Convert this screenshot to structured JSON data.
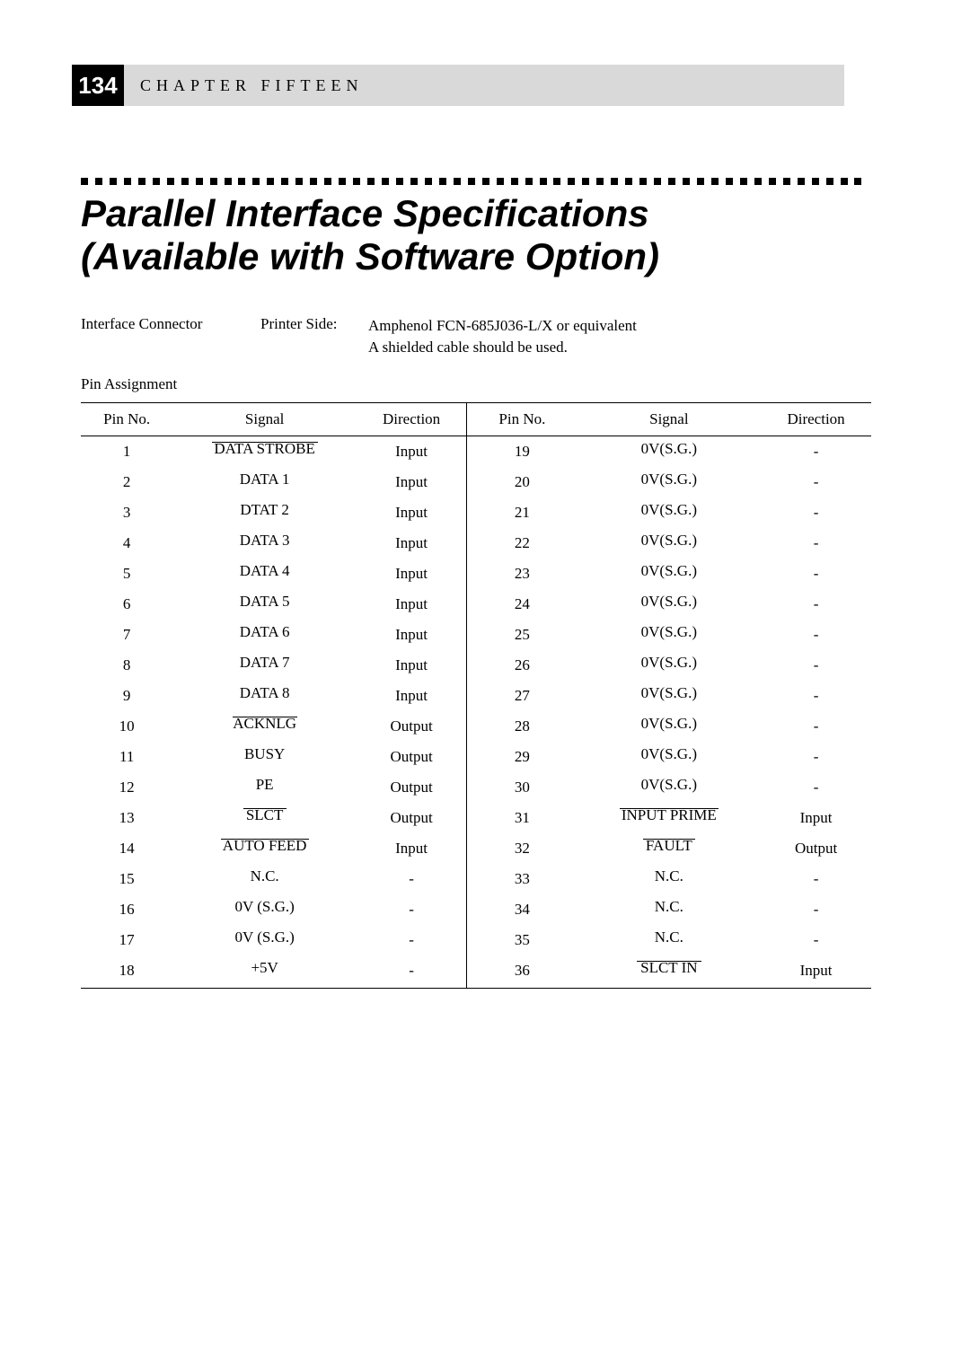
{
  "page_number": "134",
  "chapter_label": "CHAPTER FIFTEEN",
  "title_line1": "Parallel Interface Specifications",
  "title_line2": "(Available with Software Option)",
  "connector_label": "Interface Connector",
  "connector_mid": "Printer Side:",
  "connector_val_l1": "Amphenol FCN-685J036-L/X or equivalent",
  "connector_val_l2": "A shielded cable should be used.",
  "assignment_label": "Pin Assignment",
  "headers": {
    "pin": "Pin No.",
    "signal": "Signal",
    "direction": "Direction"
  },
  "left": [
    {
      "pin": "1",
      "signal": "DATA STROBE",
      "dir": "Input",
      "over": 118
    },
    {
      "pin": "2",
      "signal": "DATA 1",
      "dir": "Input",
      "over": 0
    },
    {
      "pin": "3",
      "signal": "DTAT 2",
      "dir": "Input",
      "over": 0
    },
    {
      "pin": "4",
      "signal": "DATA 3",
      "dir": "Input",
      "over": 0
    },
    {
      "pin": "5",
      "signal": "DATA 4",
      "dir": "Input",
      "over": 0
    },
    {
      "pin": "6",
      "signal": "DATA 5",
      "dir": "Input",
      "over": 0
    },
    {
      "pin": "7",
      "signal": "DATA 6",
      "dir": "Input",
      "over": 0
    },
    {
      "pin": "8",
      "signal": "DATA 7",
      "dir": "Input",
      "over": 0
    },
    {
      "pin": "9",
      "signal": "DATA 8",
      "dir": "Input",
      "over": 0
    },
    {
      "pin": "10",
      "signal": "ACKNLG",
      "dir": "Output",
      "over": 72
    },
    {
      "pin": "11",
      "signal": "BUSY",
      "dir": "Output",
      "over": 0
    },
    {
      "pin": "12",
      "signal": "PE",
      "dir": "Output",
      "over": 0
    },
    {
      "pin": "13",
      "signal": "SLCT",
      "dir": "Output",
      "over": 48
    },
    {
      "pin": "14",
      "signal": "AUTO FEED",
      "dir": "Input",
      "over": 98
    },
    {
      "pin": "15",
      "signal": "N.C.",
      "dir": "-",
      "over": 0
    },
    {
      "pin": "16",
      "signal": "0V (S.G.)",
      "dir": "-",
      "over": 0
    },
    {
      "pin": "17",
      "signal": "0V (S.G.)",
      "dir": "-",
      "over": 0
    },
    {
      "pin": "18",
      "signal": "+5V",
      "dir": "-",
      "over": 0
    }
  ],
  "right": [
    {
      "pin": "19",
      "signal": "0V(S.G.)",
      "dir": "-",
      "over": 0
    },
    {
      "pin": "20",
      "signal": "0V(S.G.)",
      "dir": "-",
      "over": 0
    },
    {
      "pin": "21",
      "signal": "0V(S.G.)",
      "dir": "-",
      "over": 0
    },
    {
      "pin": "22",
      "signal": "0V(S.G.)",
      "dir": "-",
      "over": 0
    },
    {
      "pin": "23",
      "signal": "0V(S.G.)",
      "dir": "-",
      "over": 0
    },
    {
      "pin": "24",
      "signal": "0V(S.G.)",
      "dir": "-",
      "over": 0
    },
    {
      "pin": "25",
      "signal": "0V(S.G.)",
      "dir": "-",
      "over": 0
    },
    {
      "pin": "26",
      "signal": "0V(S.G.)",
      "dir": "-",
      "over": 0
    },
    {
      "pin": "27",
      "signal": "0V(S.G.)",
      "dir": "-",
      "over": 0
    },
    {
      "pin": "28",
      "signal": "0V(S.G.)",
      "dir": "-",
      "over": 0
    },
    {
      "pin": "29",
      "signal": "0V(S.G.)",
      "dir": "-",
      "over": 0
    },
    {
      "pin": "30",
      "signal": "0V(S.G.)",
      "dir": "-",
      "over": 0
    },
    {
      "pin": "31",
      "signal": "INPUT PRIME",
      "dir": "Input",
      "over": 110
    },
    {
      "pin": "32",
      "signal": "FAULT",
      "dir": "Output",
      "over": 58
    },
    {
      "pin": "33",
      "signal": "N.C.",
      "dir": "-",
      "over": 0
    },
    {
      "pin": "34",
      "signal": "N.C.",
      "dir": "-",
      "over": 0
    },
    {
      "pin": "35",
      "signal": "N.C.",
      "dir": "-",
      "over": 0
    },
    {
      "pin": "36",
      "signal": "SLCT IN",
      "dir": "Input",
      "over": 72
    }
  ],
  "style": {
    "dot_count": 55
  }
}
